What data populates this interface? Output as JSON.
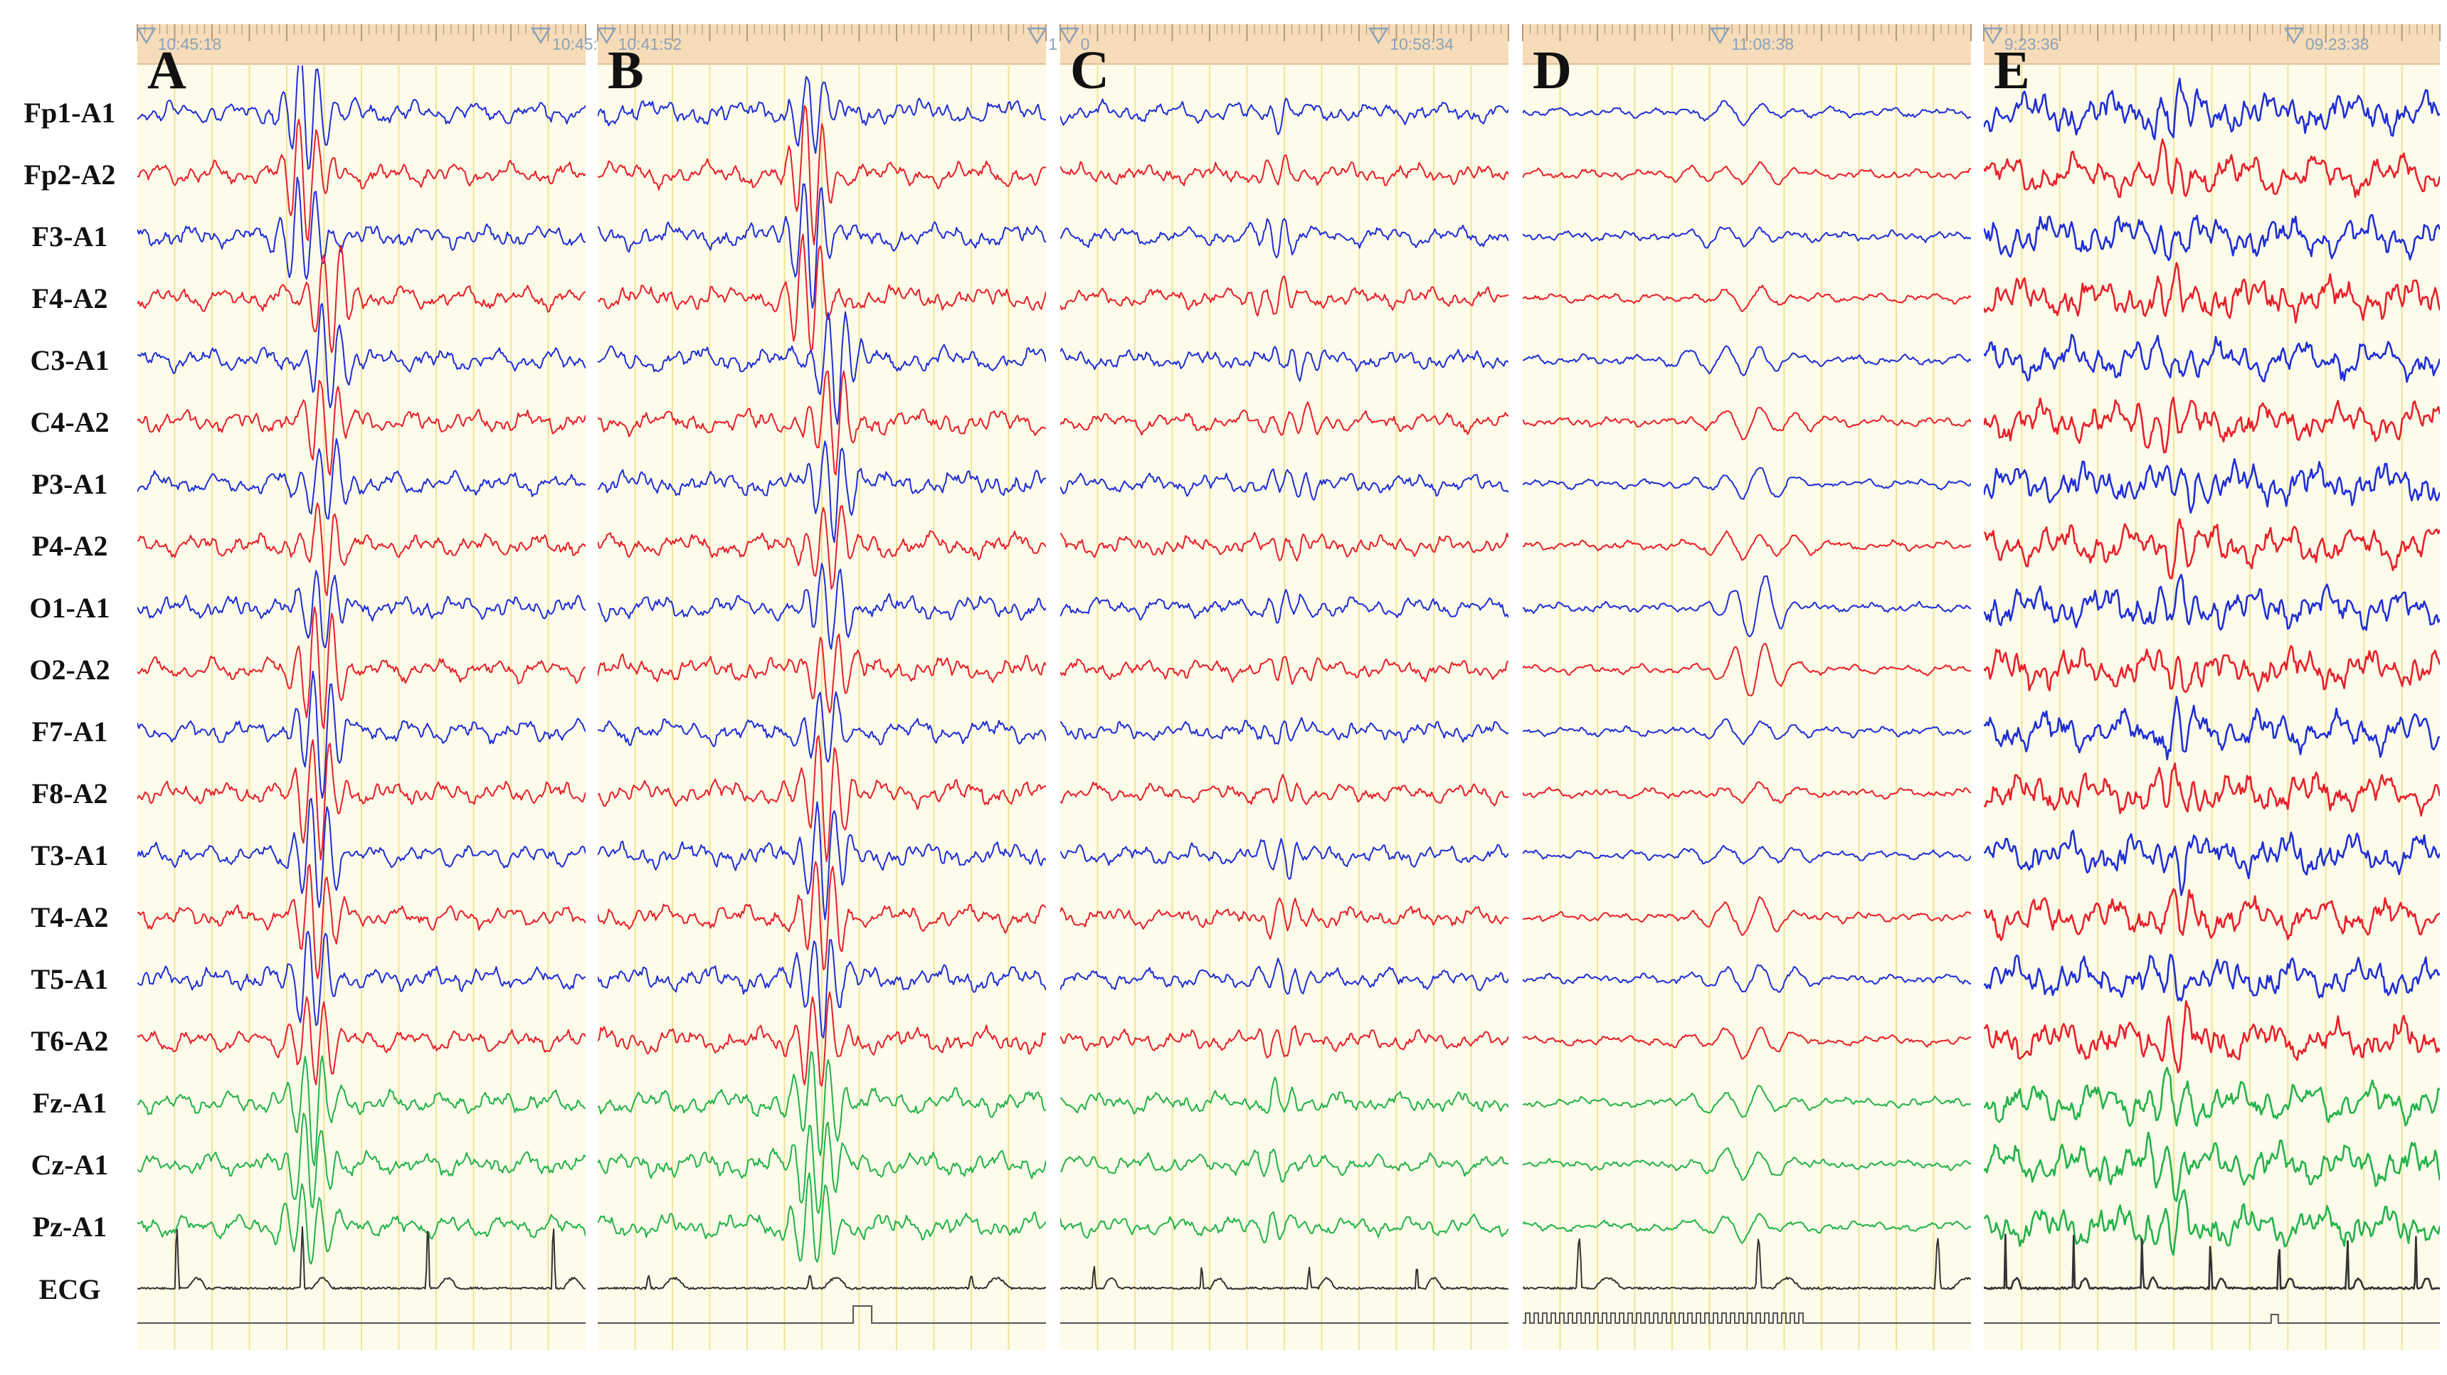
{
  "channels": [
    "Fp1-A1",
    "Fp2-A2",
    "F3-A1",
    "F4-A2",
    "C3-A1",
    "C4-A2",
    "P3-A1",
    "P4-A2",
    "O1-A1",
    "O2-A2",
    "F7-A1",
    "F8-A2",
    "T3-A1",
    "T4-A2",
    "T5-A1",
    "T6-A2",
    "Fz-A1",
    "Cz-A1",
    "Pz-A1",
    "ECG"
  ],
  "colors": {
    "left": "#1f2fd6",
    "right": "#e8202a",
    "midline": "#22b24a",
    "ecg": "#333333",
    "panel_bg": "#fdfbea",
    "ruler_bg": "#f6dcb8",
    "grid": "#efe59a",
    "marker": "#8aa2bd"
  },
  "panels": [
    {
      "letter": "A",
      "time_labels": [
        "10:45:18",
        "10:45:"
      ]
    },
    {
      "letter": "B",
      "time_labels": [
        "10:41:52",
        "1"
      ]
    },
    {
      "letter": "C",
      "time_labels": [
        "0",
        "10:58:34"
      ]
    },
    {
      "letter": "D",
      "time_labels": [
        "11:08:38"
      ]
    },
    {
      "letter": "E",
      "time_labels": [
        "9:23:36",
        "09:23:38"
      ]
    }
  ]
}
